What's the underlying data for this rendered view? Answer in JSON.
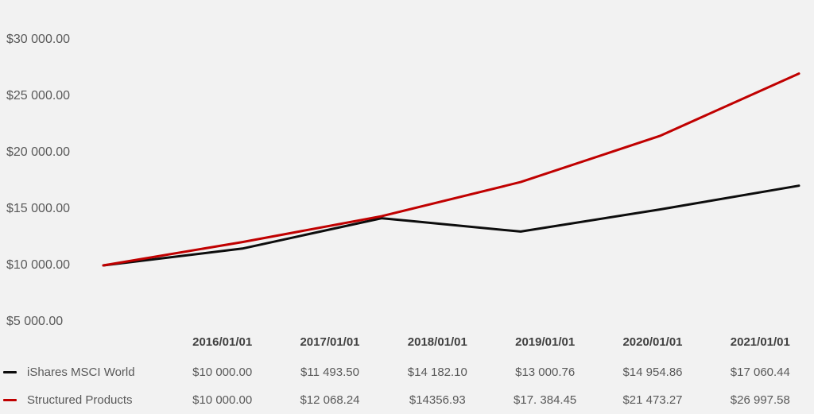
{
  "chart_data": {
    "type": "line",
    "title": "",
    "xlabel": "",
    "ylabel": "",
    "background_color": "#f2f2f2",
    "grid": false,
    "legend_position": "table-left-column",
    "categories": [
      "2016/01/01",
      "2017/01/01",
      "2018/01/01",
      "2019/01/01",
      "2020/01/01",
      "2021/01/01"
    ],
    "series": [
      {
        "name": "iShares MSCI World",
        "color": "#0d0d0d",
        "values": [
          10000.0,
          11493.5,
          14182.1,
          13000.76,
          14954.86,
          17060.44
        ],
        "display_values": [
          "$10 000.00",
          "$11 493.50",
          "$14 182.10",
          "$13 000.76",
          "$14 954.86",
          "$17 060.44"
        ]
      },
      {
        "name": "Structured Products",
        "color": "#c00000",
        "values": [
          10000.0,
          12068.24,
          14356.93,
          17384.45,
          21473.27,
          26997.58
        ],
        "display_values": [
          "$10 000.00",
          "$12 068.24",
          "$14356.93",
          "$17. 384.45",
          "$21 473.27",
          "$26 997.58"
        ]
      }
    ],
    "y_ticks": [
      {
        "value": 30000,
        "label": "$30 000.00"
      },
      {
        "value": 25000,
        "label": "$25 000.00"
      },
      {
        "value": 20000,
        "label": "$20 000.00"
      },
      {
        "value": 15000,
        "label": "$15 000.00"
      },
      {
        "value": 10000,
        "label": "$10 000.00"
      },
      {
        "value": 5000,
        "label": "$5 000.00"
      }
    ],
    "ylim": [
      5000,
      30000
    ]
  }
}
